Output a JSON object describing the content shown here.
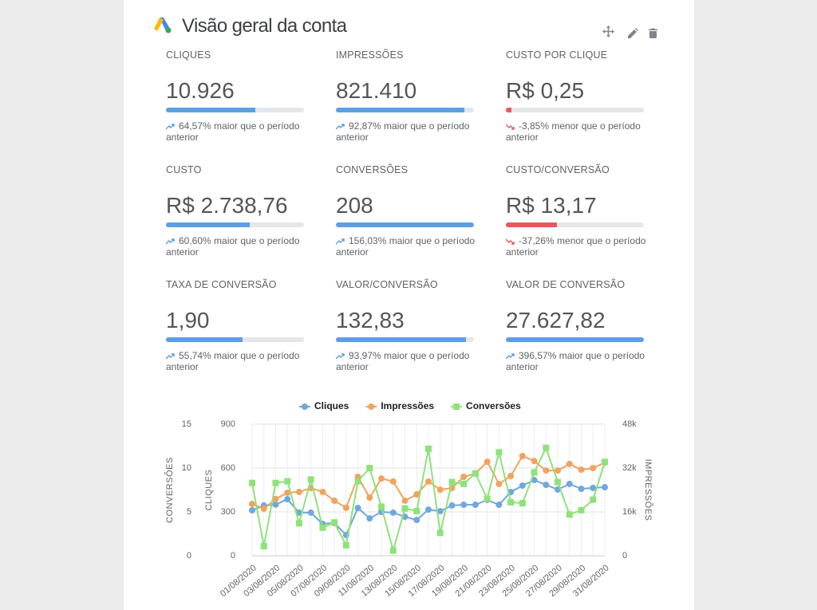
{
  "header": {
    "title": "Visão geral da conta"
  },
  "metrics": [
    {
      "label": "CLIQUES",
      "value": "10.926",
      "progress": 64.57,
      "direction": "up",
      "change": "64,57% maior que o período anterior"
    },
    {
      "label": "IMPRESSÕES",
      "value": "821.410",
      "progress": 92.87,
      "direction": "up",
      "change": "92,87% maior que o período anterior"
    },
    {
      "label": "CUSTO POR CLIQUE",
      "value": "R$ 0,25",
      "progress": 3.85,
      "direction": "down",
      "change": "-3,85% menor que o período anterior"
    },
    {
      "label": "CUSTO",
      "value": "R$ 2.738,76",
      "progress": 60.6,
      "direction": "up",
      "change": "60,60% maior que o período anterior"
    },
    {
      "label": "CONVERSÕES",
      "value": "208",
      "progress": 100,
      "direction": "up",
      "change": "156,03% maior que o período anterior"
    },
    {
      "label": "CUSTO/CONVERSÃO",
      "value": "R$ 13,17",
      "progress": 37.26,
      "direction": "down",
      "change": "-37,26% menor que o período anterior"
    },
    {
      "label": "TAXA DE CONVERSÃO",
      "value": "1,90",
      "progress": 55.74,
      "direction": "up",
      "change": "55,74% maior que o período anterior"
    },
    {
      "label": "VALOR/CONVERSÃO",
      "value": "132,83",
      "progress": 93.97,
      "direction": "up",
      "change": "93,97% maior que o período anterior"
    },
    {
      "label": "VALOR DE CONVERSÃO",
      "value": "27.627,82",
      "progress": 100,
      "direction": "up",
      "change": "396,57% maior que o período anterior"
    }
  ],
  "chart_data": {
    "type": "line",
    "categories": [
      "01/08/2020",
      null,
      "03/08/2020",
      null,
      "05/08/2020",
      null,
      "07/08/2020",
      null,
      "09/08/2020",
      null,
      "11/08/2020",
      null,
      "13/08/2020",
      null,
      "15/08/2020",
      null,
      "17/08/2020",
      null,
      "19/08/2020",
      null,
      "21/08/2020",
      null,
      "23/08/2020",
      null,
      "25/08/2020",
      null,
      "27/08/2020",
      null,
      "29/08/2020",
      null,
      "31/08/2020"
    ],
    "series": [
      {
        "name": "Cliques",
        "color": "#6fa8dc",
        "axis": "y",
        "marker": "circle",
        "values": [
          311,
          344,
          350,
          387,
          295,
          295,
          218,
          224,
          142,
          327,
          256,
          300,
          295,
          267,
          245,
          316,
          305,
          344,
          349,
          349,
          382,
          349,
          436,
          480,
          518,
          485,
          453,
          491,
          458,
          464,
          469
        ]
      },
      {
        "name": "Impressões",
        "color": "#f0a35e",
        "axis": "y2",
        "marker": "circle",
        "values": [
          18900,
          17200,
          20700,
          23000,
          23300,
          24700,
          23300,
          20100,
          17500,
          28800,
          21200,
          28200,
          27100,
          20100,
          22400,
          27100,
          24100,
          24700,
          28800,
          30000,
          34300,
          26200,
          29100,
          36400,
          34600,
          31100,
          31100,
          33500,
          31400,
          32000,
          34000
        ]
      },
      {
        "name": "Conversões",
        "color": "#8ee27a",
        "axis": "y3",
        "marker": "square",
        "values": [
          8.3,
          1.1,
          8.3,
          8.5,
          3.7,
          8.7,
          3.2,
          3.8,
          1.2,
          8.5,
          10,
          5.6,
          0.6,
          5.4,
          5.1,
          12.2,
          2.6,
          8.4,
          8.2,
          9.4,
          6.5,
          11.8,
          6.1,
          6,
          9.5,
          12.3,
          8.4,
          4.7,
          5.2,
          6.4,
          10.7
        ]
      }
    ],
    "y_label": "CLIQUES",
    "ylim": [
      0,
      900
    ],
    "yticks": [
      0,
      300,
      600,
      900
    ],
    "y2_label": "IMPRESSÕES",
    "y2lim": [
      0,
      48000
    ],
    "y2ticks": [
      0,
      {
        "value": 16000,
        "label": "16k"
      },
      {
        "value": 32000,
        "label": "32k"
      },
      {
        "value": 48000,
        "label": "48k"
      }
    ],
    "y3_label": "CONVERSÕES",
    "y3lim": [
      0,
      15
    ],
    "y3ticks": [
      0,
      5,
      10,
      15
    ],
    "grid": true,
    "legend": "top"
  }
}
